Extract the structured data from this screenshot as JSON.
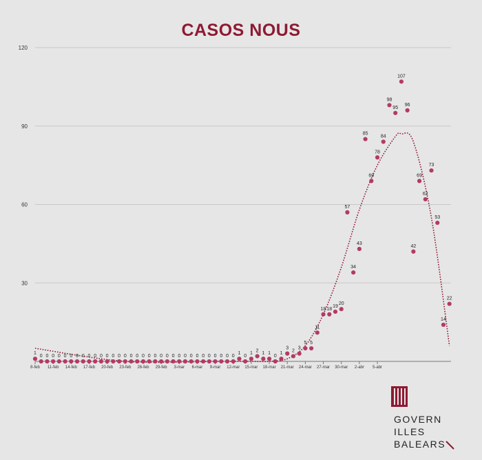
{
  "colors": {
    "title": "#8e1a32",
    "marker": "#b33a66",
    "trend": "#8e1a32",
    "grid": "#c8c8c8"
  },
  "chart_data": {
    "type": "scatter",
    "title": "CASOS NOUS",
    "xlabel": "",
    "ylabel": "",
    "ylim": [
      0,
      120
    ],
    "yticks": [
      30,
      60,
      90,
      120
    ],
    "grid": true,
    "legend": "none",
    "x_tick_labels": [
      "8-feb",
      "11-feb",
      "14-feb",
      "17-feb",
      "20-feb",
      "23-feb",
      "26-feb",
      "29-feb",
      "3-mar",
      "6-mar",
      "9-mar",
      "12-mar",
      "15-mar",
      "18-mar",
      "21-mar",
      "24-mar",
      "27-mar",
      "30-mar",
      "2-abr",
      "5-abr"
    ],
    "values": [
      1,
      0,
      0,
      0,
      0,
      0,
      0,
      0,
      0,
      0,
      0,
      0,
      0,
      0,
      0,
      0,
      0,
      0,
      0,
      0,
      0,
      0,
      0,
      0,
      0,
      0,
      0,
      0,
      0,
      0,
      0,
      0,
      0,
      0,
      1,
      0,
      1,
      2,
      1,
      1,
      0,
      1,
      3,
      2,
      3,
      5,
      5,
      11,
      18,
      18,
      19,
      20,
      57,
      34,
      43,
      85,
      69,
      78,
      84,
      98,
      95,
      107,
      96,
      42,
      69,
      62,
      73,
      53,
      14,
      22
    ],
    "point_labels": [
      "1",
      "0",
      "0",
      "0",
      "0",
      "0",
      "0",
      "0",
      "0",
      "0",
      "0",
      "0",
      "0",
      "0",
      "0",
      "0",
      "0",
      "0",
      "0",
      "0",
      "0",
      "0",
      "0",
      "0",
      "0",
      "0",
      "0",
      "0",
      "0",
      "0",
      "0",
      "0",
      "0",
      "0",
      "1",
      "0",
      "1",
      "2",
      "1",
      "1",
      "0",
      "1",
      "3",
      "2",
      "3",
      "5",
      "5",
      "11",
      "18",
      "18",
      "19",
      "20",
      "57",
      "34",
      "43",
      "85",
      "69",
      "78",
      "84",
      "98",
      "95",
      "107",
      "96",
      "42",
      "69",
      "62",
      "73",
      "53",
      "14",
      "22"
    ],
    "trendline": {
      "type": "polynomial",
      "x": [
        0,
        15,
        30,
        33,
        36,
        39,
        42,
        45,
        48,
        51,
        54,
        57,
        60,
        61,
        63,
        66,
        69
      ],
      "y": [
        5,
        0,
        0,
        0,
        0,
        0,
        1,
        6,
        18,
        36,
        58,
        75,
        86,
        87,
        84,
        55,
        6
      ]
    }
  },
  "logo": {
    "line1": "GOVERN",
    "line2": "ILLES",
    "line3": "BALEARS"
  }
}
